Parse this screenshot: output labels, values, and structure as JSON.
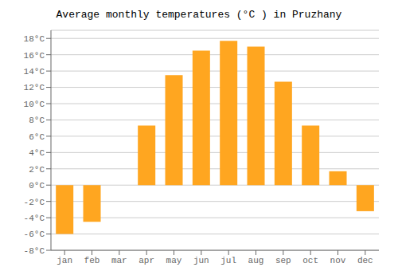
{
  "chart_data": {
    "type": "bar",
    "title": "Average monthly temperatures (°C ) in Pruzhany",
    "categories": [
      "jan",
      "feb",
      "mar",
      "apr",
      "may",
      "jun",
      "jul",
      "aug",
      "sep",
      "oct",
      "nov",
      "dec"
    ],
    "values": [
      -6.0,
      -4.5,
      0.0,
      7.3,
      13.5,
      16.5,
      17.7,
      17.0,
      12.7,
      7.3,
      1.7,
      -3.2
    ],
    "color": "#FFA620",
    "ylim": [
      -8,
      19
    ],
    "yticks": [
      {
        "value": -8,
        "label": "-8°C"
      },
      {
        "value": -6,
        "label": "-6°C"
      },
      {
        "value": -4,
        "label": "-4°C"
      },
      {
        "value": -2,
        "label": "-2°C"
      },
      {
        "value": 0,
        "label": "0°C"
      },
      {
        "value": 2,
        "label": "2°C"
      },
      {
        "value": 4,
        "label": "4°C"
      },
      {
        "value": 6,
        "label": "6°C"
      },
      {
        "value": 8,
        "label": "8°C"
      },
      {
        "value": 10,
        "label": "10°C"
      },
      {
        "value": 12,
        "label": "12°C"
      },
      {
        "value": 14,
        "label": "14°C"
      },
      {
        "value": 16,
        "label": "16°C"
      },
      {
        "value": 18,
        "label": "18°C"
      }
    ],
    "grid": true
  }
}
